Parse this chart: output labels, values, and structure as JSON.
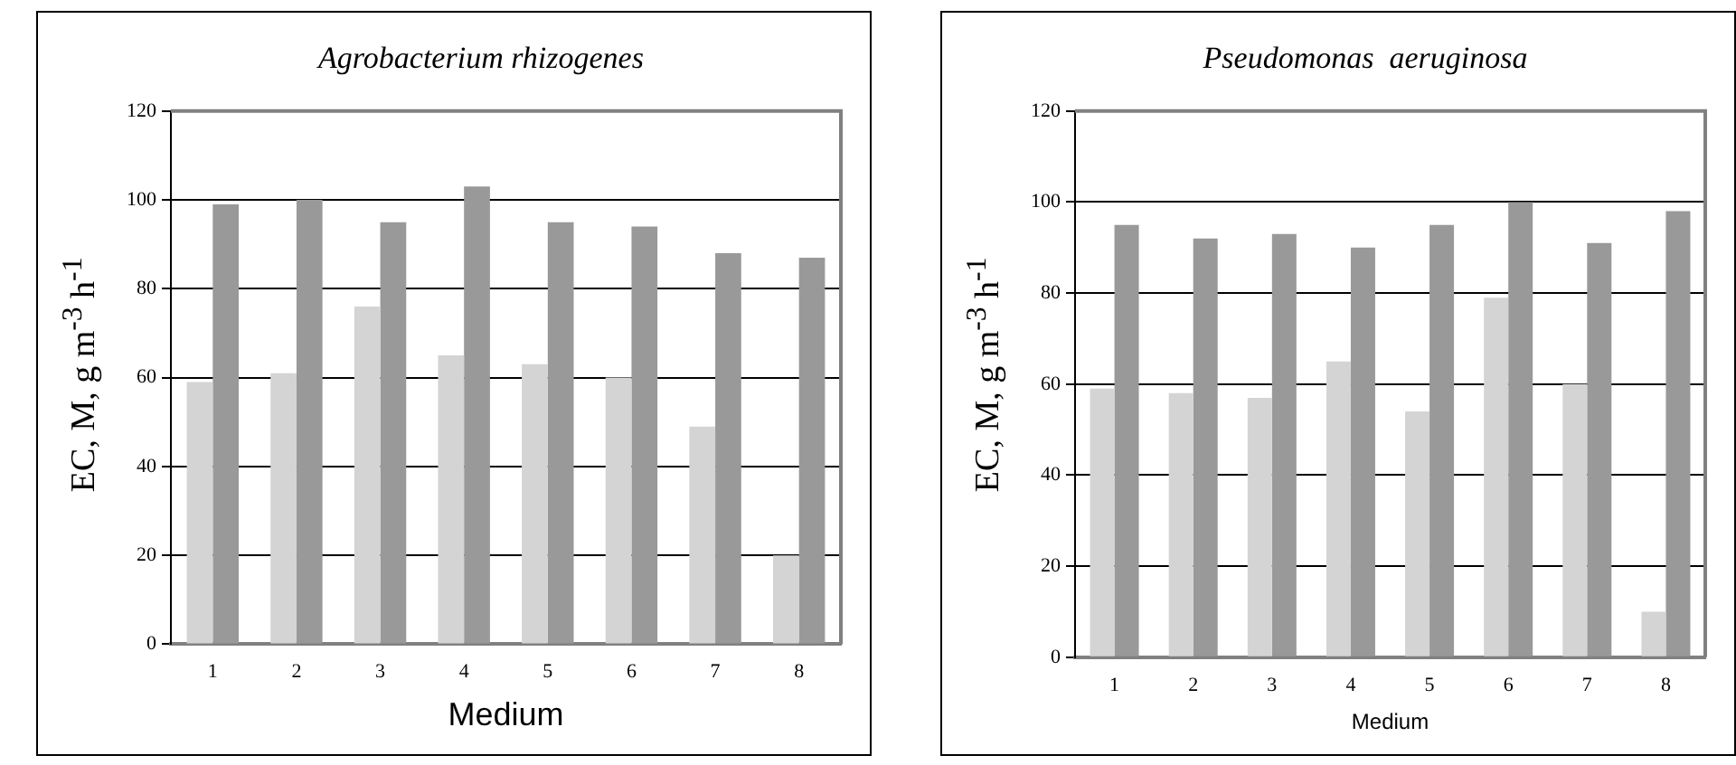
{
  "chart_data": [
    {
      "type": "bar",
      "title": "Agrobacterium rhizogenes",
      "xlabel": "Medium",
      "ylabel": "EC, M, g m$^{-3}$ h$^{-1}$",
      "categories": [
        "1",
        "2",
        "3",
        "4",
        "5",
        "6",
        "7",
        "8"
      ],
      "series": [
        {
          "color": "#d4d4d4",
          "values": [
            59,
            61,
            76,
            65,
            63,
            60,
            49,
            20
          ]
        },
        {
          "color": "#999999",
          "values": [
            99,
            100,
            95,
            103,
            95,
            94,
            88,
            87
          ]
        }
      ],
      "ylim": [
        0,
        120
      ],
      "yticks": [
        0,
        20,
        40,
        60,
        80,
        100,
        120
      ],
      "grid": "y",
      "legend": false
    },
    {
      "type": "bar",
      "title": "Pseudomonas  aeruginosa",
      "xlabel": "Medium",
      "ylabel": "EC, M, g m$^{-3}$ h$^{-1}$",
      "categories": [
        "1",
        "2",
        "3",
        "4",
        "5",
        "6",
        "7",
        "8"
      ],
      "series": [
        {
          "color": "#d4d4d4",
          "values": [
            59,
            58,
            57,
            65,
            54,
            79,
            60,
            10
          ]
        },
        {
          "color": "#999999",
          "values": [
            95,
            92,
            93,
            90,
            95,
            100,
            91,
            98
          ]
        }
      ],
      "ylim": [
        0,
        120
      ],
      "yticks": [
        0,
        20,
        40,
        60,
        80,
        100,
        120
      ],
      "grid": "y",
      "legend": false
    }
  ]
}
